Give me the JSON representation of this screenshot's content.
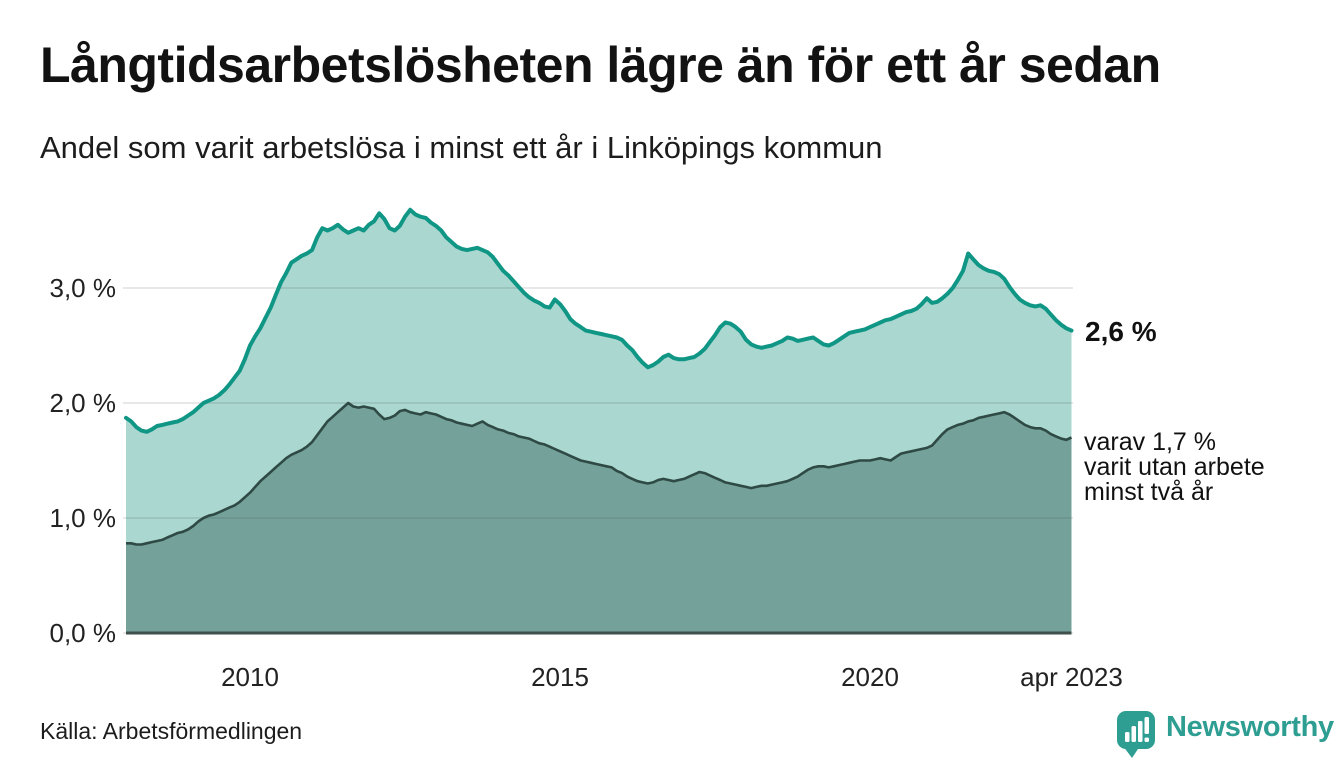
{
  "header": {
    "title": "Långtidsarbetslösheten lägre än för ett år sedan",
    "subtitle": "Andel som varit arbetslösa i minst ett år i Linköpings kommun"
  },
  "footer": {
    "source": "Källa: Arbetsförmedlingen",
    "brand": {
      "name": "Newsworthy",
      "color": "#2f9e92"
    }
  },
  "chart_data": {
    "type": "area",
    "title": "Långtidsarbetslösheten lägre än för ett år sedan",
    "subtitle": "Andel som varit arbetslösa i minst ett år i Linköpings kommun",
    "unit": "%",
    "x_start": 2008.0,
    "x_step": 0.0833333,
    "x_end": 2023.25,
    "ylim": [
      0,
      3.9
    ],
    "grid": true,
    "yticks": [
      {
        "value": 0,
        "label": "0,0 %"
      },
      {
        "value": 1,
        "label": "1,0 %"
      },
      {
        "value": 2,
        "label": "2,0 %"
      },
      {
        "value": 3,
        "label": "3,0 %"
      }
    ],
    "xticks": [
      {
        "value": 2010,
        "label": "2010"
      },
      {
        "value": 2015,
        "label": "2015"
      },
      {
        "value": 2020,
        "label": "2020"
      },
      {
        "value": 2023.25,
        "label": "apr 2023"
      }
    ],
    "series": [
      {
        "name": "Andel arbetslösa minst ett år",
        "line_color": "#109685",
        "fill_color": "#aad7d0",
        "end_value_label": "2,6 %",
        "values": [
          1.87,
          1.84,
          1.79,
          1.76,
          1.75,
          1.77,
          1.8,
          1.81,
          1.82,
          1.83,
          1.84,
          1.86,
          1.89,
          1.92,
          1.96,
          2.0,
          2.02,
          2.04,
          2.07,
          2.11,
          2.16,
          2.22,
          2.28,
          2.38,
          2.5,
          2.58,
          2.65,
          2.74,
          2.83,
          2.94,
          3.05,
          3.13,
          3.22,
          3.25,
          3.28,
          3.3,
          3.33,
          3.44,
          3.52,
          3.5,
          3.52,
          3.55,
          3.51,
          3.48,
          3.5,
          3.52,
          3.5,
          3.55,
          3.58,
          3.65,
          3.6,
          3.52,
          3.5,
          3.54,
          3.62,
          3.68,
          3.64,
          3.62,
          3.61,
          3.57,
          3.54,
          3.5,
          3.44,
          3.4,
          3.36,
          3.34,
          3.33,
          3.34,
          3.35,
          3.33,
          3.31,
          3.27,
          3.21,
          3.15,
          3.11,
          3.06,
          3.01,
          2.96,
          2.92,
          2.89,
          2.87,
          2.84,
          2.83,
          2.9,
          2.86,
          2.8,
          2.73,
          2.69,
          2.66,
          2.63,
          2.62,
          2.61,
          2.6,
          2.59,
          2.58,
          2.57,
          2.55,
          2.5,
          2.46,
          2.4,
          2.35,
          2.31,
          2.33,
          2.36,
          2.4,
          2.42,
          2.39,
          2.38,
          2.38,
          2.39,
          2.4,
          2.43,
          2.47,
          2.53,
          2.59,
          2.66,
          2.7,
          2.69,
          2.66,
          2.62,
          2.55,
          2.51,
          2.49,
          2.48,
          2.49,
          2.5,
          2.52,
          2.54,
          2.57,
          2.56,
          2.54,
          2.55,
          2.56,
          2.57,
          2.54,
          2.51,
          2.5,
          2.52,
          2.55,
          2.58,
          2.61,
          2.62,
          2.63,
          2.64,
          2.66,
          2.68,
          2.7,
          2.72,
          2.73,
          2.75,
          2.77,
          2.79,
          2.8,
          2.82,
          2.86,
          2.91,
          2.87,
          2.88,
          2.91,
          2.95,
          3.0,
          3.07,
          3.15,
          3.3,
          3.25,
          3.2,
          3.17,
          3.15,
          3.14,
          3.12,
          3.08,
          3.01,
          2.95,
          2.9,
          2.87,
          2.85,
          2.84,
          2.85,
          2.82,
          2.77,
          2.72,
          2.68,
          2.65,
          2.63
        ]
      },
      {
        "name": "Varav arbetslösa minst två år",
        "line_color": "#2f4a45",
        "fill_color": "#74a29b",
        "end_value_label": "1,7 %",
        "values": [
          0.78,
          0.78,
          0.77,
          0.77,
          0.78,
          0.79,
          0.8,
          0.81,
          0.83,
          0.85,
          0.87,
          0.88,
          0.9,
          0.93,
          0.97,
          1.0,
          1.02,
          1.03,
          1.05,
          1.07,
          1.09,
          1.11,
          1.14,
          1.18,
          1.22,
          1.27,
          1.32,
          1.36,
          1.4,
          1.44,
          1.48,
          1.52,
          1.55,
          1.57,
          1.59,
          1.62,
          1.66,
          1.72,
          1.78,
          1.84,
          1.88,
          1.92,
          1.96,
          2.0,
          1.97,
          1.96,
          1.97,
          1.96,
          1.95,
          1.9,
          1.86,
          1.87,
          1.89,
          1.93,
          1.94,
          1.92,
          1.91,
          1.9,
          1.92,
          1.91,
          1.9,
          1.88,
          1.86,
          1.85,
          1.83,
          1.82,
          1.81,
          1.8,
          1.82,
          1.84,
          1.81,
          1.79,
          1.77,
          1.76,
          1.74,
          1.73,
          1.71,
          1.7,
          1.69,
          1.67,
          1.65,
          1.64,
          1.62,
          1.6,
          1.58,
          1.56,
          1.54,
          1.52,
          1.5,
          1.49,
          1.48,
          1.47,
          1.46,
          1.45,
          1.44,
          1.41,
          1.39,
          1.36,
          1.34,
          1.32,
          1.31,
          1.3,
          1.31,
          1.33,
          1.34,
          1.33,
          1.32,
          1.33,
          1.34,
          1.36,
          1.38,
          1.4,
          1.39,
          1.37,
          1.35,
          1.33,
          1.31,
          1.3,
          1.29,
          1.28,
          1.27,
          1.26,
          1.27,
          1.28,
          1.28,
          1.29,
          1.3,
          1.31,
          1.32,
          1.34,
          1.36,
          1.39,
          1.42,
          1.44,
          1.45,
          1.45,
          1.44,
          1.45,
          1.46,
          1.47,
          1.48,
          1.49,
          1.5,
          1.5,
          1.5,
          1.51,
          1.52,
          1.51,
          1.5,
          1.53,
          1.56,
          1.57,
          1.58,
          1.59,
          1.6,
          1.61,
          1.63,
          1.68,
          1.73,
          1.77,
          1.79,
          1.81,
          1.82,
          1.84,
          1.85,
          1.87,
          1.88,
          1.89,
          1.9,
          1.91,
          1.92,
          1.9,
          1.87,
          1.84,
          1.81,
          1.79,
          1.78,
          1.78,
          1.76,
          1.73,
          1.71,
          1.69,
          1.68,
          1.7
        ]
      }
    ],
    "annotations": [
      {
        "text": "2,6 %"
      },
      {
        "lines": [
          "varav 1,7 %",
          "varit utan arbete",
          "minst två år"
        ]
      }
    ]
  }
}
